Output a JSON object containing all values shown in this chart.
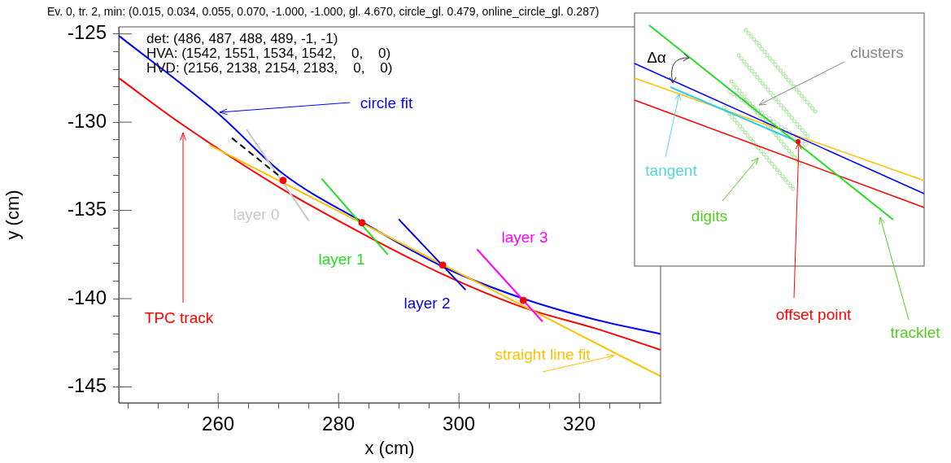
{
  "chart_data": [
    {
      "type": "line",
      "title": "Ev. 0, tr. 2, min: (0.015, 0.034, 0.055, 0.070, -1.000, -1.000, gl. 4.670, circle_gl. 0.479, online_circle_gl. 0.287)",
      "xlabel": "x (cm)",
      "ylabel": "y (cm)",
      "xlim": [
        243.5,
        333.5
      ],
      "ylim": [
        -145.9,
        -124.6
      ],
      "xticks": [
        {
          "value": 245,
          "label": null
        },
        {
          "value": 250,
          "label": null
        },
        {
          "value": 255,
          "label": null
        },
        260,
        {
          "value": 265,
          "label": null
        },
        {
          "value": 270,
          "label": null
        },
        {
          "value": 275,
          "label": null
        },
        280,
        {
          "value": 285,
          "label": null
        },
        {
          "value": 290,
          "label": null
        },
        {
          "value": 295,
          "label": null
        },
        300,
        {
          "value": 305,
          "label": null
        },
        {
          "value": 310,
          "label": null
        },
        {
          "value": 315,
          "label": null
        },
        320,
        {
          "value": 325,
          "label": null
        },
        {
          "value": 330,
          "label": null
        }
      ],
      "yticks": [
        -145,
        {
          "value": -144,
          "label": null
        },
        {
          "value": -143,
          "label": null
        },
        {
          "value": -142,
          "label": null
        },
        {
          "value": -141,
          "label": null
        },
        -140,
        {
          "value": -139,
          "label": null
        },
        {
          "value": -138,
          "label": null
        },
        {
          "value": -137,
          "label": null
        },
        {
          "value": -136,
          "label": null
        },
        -135,
        {
          "value": -134,
          "label": null
        },
        {
          "value": -133,
          "label": null
        },
        {
          "value": -132,
          "label": null
        },
        {
          "value": -131,
          "label": null
        },
        -130,
        {
          "value": -129,
          "label": null
        },
        {
          "value": -128,
          "label": null
        },
        {
          "value": -127,
          "label": null
        },
        {
          "value": -126,
          "label": null
        },
        -125
      ],
      "grid": false,
      "series": [
        {
          "name": "TPC track",
          "color": "#ff0000",
          "x": [
            243.5,
            253.9,
            270.7,
            283.9,
            297.2,
            310.7,
            322.8,
            333.5
          ],
          "values": [
            -127.5,
            -130.1,
            -133.8,
            -136.3,
            -138.6,
            -140.5,
            -141.7,
            -142.9
          ]
        },
        {
          "name": "circle fit",
          "color": "#0000ff",
          "x": [
            243.5,
            260.3,
            270.7,
            284.2,
            297.4,
            310.7,
            322.8,
            333.5
          ],
          "values": [
            -125.1,
            -129.6,
            -132.9,
            -135.7,
            -138.2,
            -140.0,
            -141.2,
            -142.0
          ]
        },
        {
          "name": "straight line fit",
          "color": "#ffc000",
          "x": [
            258.6,
            333.5
          ],
          "values": [
            -131.3,
            -144.4
          ]
        },
        {
          "name": "layer 0",
          "color": "#c8c8c8",
          "x": [
            264.7,
            275.1
          ],
          "values": [
            -130.4,
            -135.6
          ]
        },
        {
          "name": "layer 1",
          "color": "#22dd22",
          "x": [
            277.2,
            288.2
          ],
          "values": [
            -133.2,
            -137.5
          ]
        },
        {
          "name": "layer 2",
          "color": "#0000dd",
          "x": [
            290.0,
            301.1
          ],
          "values": [
            -135.5,
            -139.5
          ]
        },
        {
          "name": "layer 3",
          "color": "#ff00ff",
          "x": [
            303.0,
            313.9
          ],
          "values": [
            -137.2,
            -141.3
          ]
        },
        {
          "color": "#000000",
          "line_style": "dashed",
          "x": [
            262.3,
            270.7
          ],
          "values": [
            -130.9,
            -133.2
          ]
        },
        {
          "type": "scatter",
          "marker": "circle",
          "color": "#ff0000",
          "x": [
            270.8,
            283.9,
            297.3,
            310.7
          ],
          "values": [
            -133.3,
            -135.7,
            -138.1,
            -140.1
          ]
        }
      ],
      "annotations": [
        "det: (486, 487, 488, 489, -1, -1)",
        "HVA: (1542, 1551, 1534, 1542,    0,    0)",
        "HVD: (2156, 2138, 2154, 2183,    0,    0)"
      ]
    },
    {
      "type": "other",
      "annotations": [
        "Δα",
        "clusters",
        "tangent",
        "digits",
        "offset point",
        "tracklet"
      ]
    }
  ]
}
